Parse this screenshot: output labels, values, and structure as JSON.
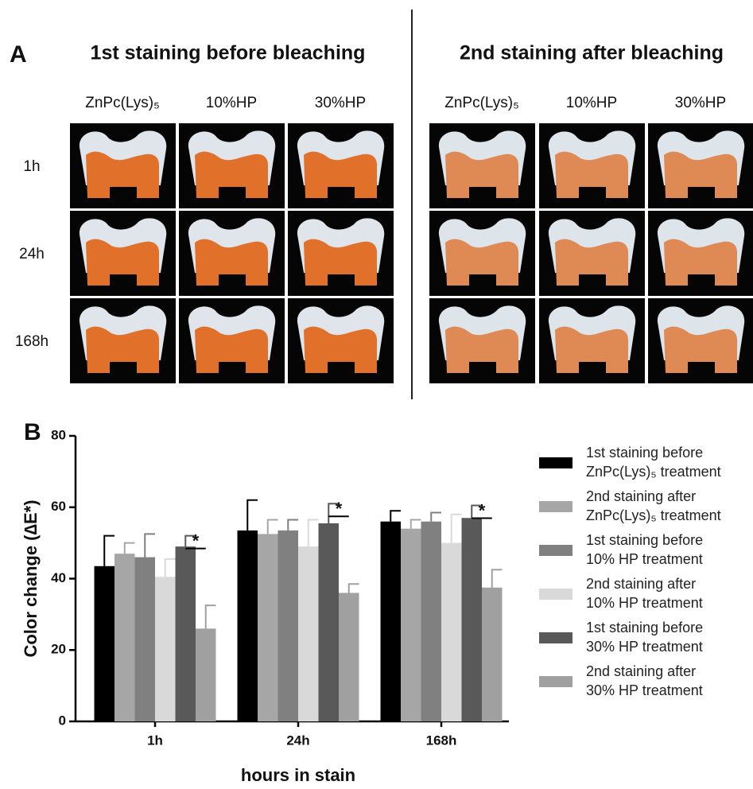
{
  "panel_a": {
    "label": "A",
    "groups": [
      {
        "title": "1st staining before bleaching",
        "columns": [
          "ZnPc(Lys)₅",
          "10%HP",
          "30%HP"
        ]
      },
      {
        "title": "2nd staining after bleaching",
        "columns": [
          "ZnPc(Lys)₅",
          "10%HP",
          "30%HP"
        ]
      }
    ],
    "rows": [
      "1h",
      "24h",
      "168h"
    ]
  },
  "chart_data": {
    "type": "bar",
    "panel_label": "B",
    "x_label": "hours in stain",
    "y_label": "Color change (∆E*)",
    "categories": [
      "1h",
      "24h",
      "168h"
    ],
    "ylim": [
      0,
      80
    ],
    "yticks": [
      0,
      20,
      40,
      60,
      80
    ],
    "series": [
      {
        "name": "1st staining before\nZnPc(Lys)₅ treatment",
        "color": "#000000",
        "values": [
          43.5,
          53.5,
          56
        ],
        "errors": [
          8.5,
          8.5,
          3
        ]
      },
      {
        "name": "2nd staining after\nZnPc(Lys)₅ treatment",
        "color": "#a6a6a6",
        "values": [
          47,
          52.5,
          54
        ],
        "errors": [
          3,
          4,
          2.5
        ]
      },
      {
        "name": "1st staining before\n10% HP treatment",
        "color": "#808080",
        "values": [
          46,
          53.5,
          56
        ],
        "errors": [
          6.5,
          3,
          2.5
        ]
      },
      {
        "name": "2nd staining after\n10% HP treatment",
        "color": "#d9d9d9",
        "values": [
          40.5,
          49,
          50
        ],
        "errors": [
          5,
          7.5,
          8
        ]
      },
      {
        "name": "1st staining before\n30% HP treatment",
        "color": "#595959",
        "values": [
          49,
          55.5,
          57
        ],
        "errors": [
          3,
          5.5,
          3.5
        ]
      },
      {
        "name": "2nd staining after\n30% HP treatment",
        "color": "#a0a0a0",
        "values": [
          26,
          36,
          37.5
        ],
        "errors": [
          6.5,
          2.5,
          5
        ]
      }
    ],
    "significance": [
      "*",
      "*",
      "*"
    ]
  }
}
